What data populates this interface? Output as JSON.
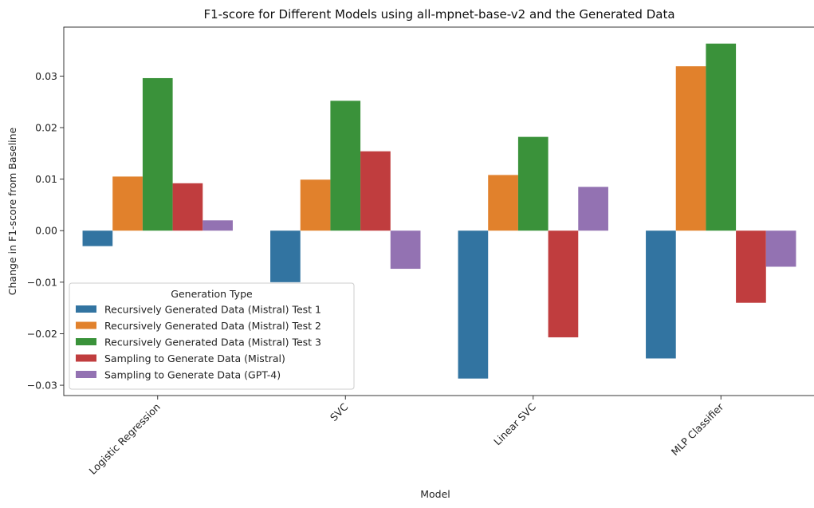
{
  "chart_data": {
    "type": "bar",
    "title": "F1-score for Different Models using all-mpnet-base-v2 and the Generated Data",
    "xlabel": "Model",
    "ylabel": "Change in F1-score from Baseline",
    "categories": [
      "Logistic Regression",
      "SVC",
      "Linear SVC",
      "MLP Classifier"
    ],
    "ylim": [
      -0.032,
      0.0395
    ],
    "yticks": [
      -0.03,
      -0.02,
      -0.01,
      0.0,
      0.01,
      0.02,
      0.03
    ],
    "ytick_labels": [
      "−0.03",
      "−0.02",
      "−0.01",
      "0.00",
      "0.01",
      "0.02",
      "0.03"
    ],
    "grid": false,
    "legend": {
      "title": "Generation Type",
      "placement": "lower-left"
    },
    "series": [
      {
        "name": "Recursively Generated Data (Mistral) Test 1",
        "color": "#3274a1",
        "values": [
          -0.003,
          -0.01,
          -0.0287,
          -0.0248
        ]
      },
      {
        "name": "Recursively Generated Data (Mistral) Test 2",
        "color": "#e1812c",
        "values": [
          0.0105,
          0.0099,
          0.0108,
          0.0319
        ]
      },
      {
        "name": "Recursively Generated Data (Mistral) Test 3",
        "color": "#3a923a",
        "values": [
          0.0296,
          0.0252,
          0.0182,
          0.0363
        ]
      },
      {
        "name": "Sampling to Generate Data (Mistral)",
        "color": "#c03d3e",
        "values": [
          0.0092,
          0.0154,
          -0.0207,
          -0.014
        ]
      },
      {
        "name": "Sampling to Generate Data (GPT-4)",
        "color": "#9372b2",
        "values": [
          0.002,
          -0.0074,
          0.0085,
          -0.007
        ]
      }
    ]
  }
}
